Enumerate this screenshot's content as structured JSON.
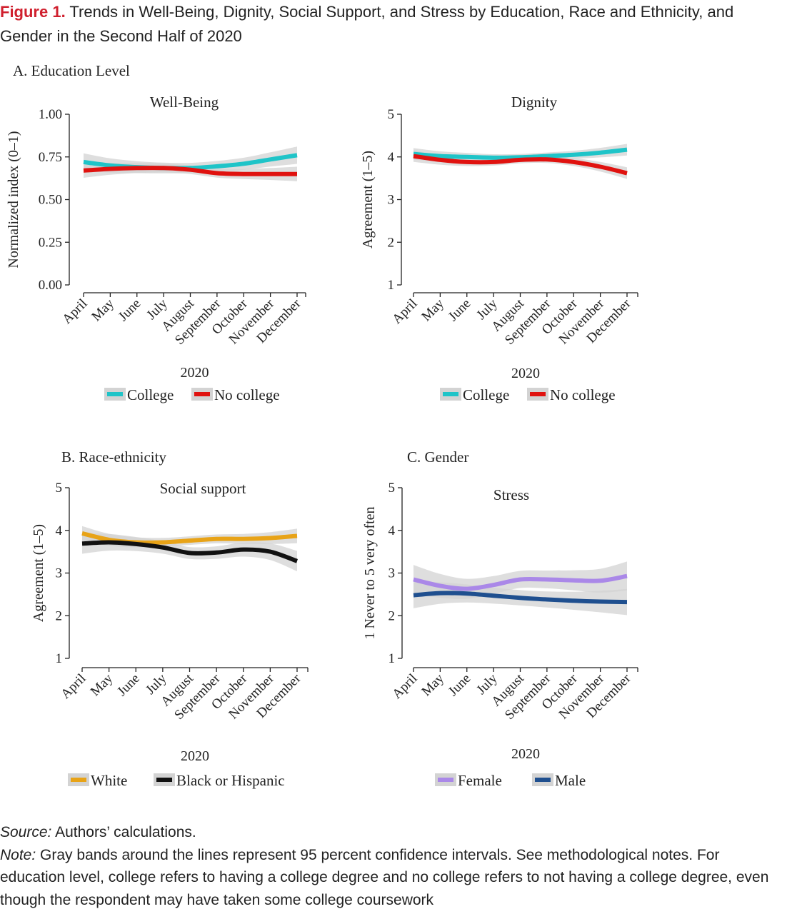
{
  "figure": {
    "label": "Figure 1.",
    "title": "Trends in Well-Being, Dignity, Social Support, and Stress by Education, Race and Ethnicity, and Gender in the Second Half of 2020"
  },
  "panels": {
    "A": "A. Education Level",
    "B": "B. Race-ethnicity",
    "C": "C. Gender"
  },
  "months": [
    "April",
    "May",
    "June",
    "July",
    "August",
    "September",
    "October",
    "November",
    "December"
  ],
  "year": "2020",
  "colors": {
    "teal": "#1fc4c8",
    "red": "#e0120f",
    "gold": "#e8a317",
    "black": "#111111",
    "purple": "#aa88e8",
    "navy": "#1f4f8f",
    "band": "#d3d3d3"
  },
  "chart_data": [
    {
      "type": "line",
      "title": "Well-Being",
      "ylabel": "Normalized index (0–1)",
      "xlabel": "2020",
      "ylim": [
        0,
        1
      ],
      "yticks": [
        "0.00",
        "0.25",
        "0.50",
        "0.75",
        "1.00"
      ],
      "x": [
        "April",
        "May",
        "June",
        "July",
        "August",
        "September",
        "October",
        "November",
        "December"
      ],
      "series": [
        {
          "name": "College",
          "color": "#1fc4c8",
          "values": [
            0.72,
            0.7,
            0.69,
            0.685,
            0.685,
            0.695,
            0.71,
            0.735,
            0.76
          ],
          "ci": 0.03
        },
        {
          "name": "No college",
          "color": "#e0120f",
          "values": [
            0.67,
            0.68,
            0.685,
            0.685,
            0.675,
            0.655,
            0.65,
            0.65,
            0.65
          ],
          "ci": 0.025
        }
      ]
    },
    {
      "type": "line",
      "title": "Dignity",
      "ylabel": "Agreement (1–5)",
      "xlabel": "2020",
      "ylim": [
        1,
        5
      ],
      "yticks": [
        "1",
        "2",
        "3",
        "4",
        "5"
      ],
      "x": [
        "April",
        "May",
        "June",
        "July",
        "August",
        "September",
        "October",
        "November",
        "December"
      ],
      "series": [
        {
          "name": "College",
          "color": "#1fc4c8",
          "values": [
            4.07,
            4.02,
            4.0,
            3.98,
            3.99,
            4.02,
            4.05,
            4.1,
            4.17
          ],
          "ci": 0.08
        },
        {
          "name": "No college",
          "color": "#e0120f",
          "values": [
            4.02,
            3.93,
            3.88,
            3.88,
            3.93,
            3.94,
            3.88,
            3.77,
            3.62
          ],
          "ci": 0.08
        }
      ]
    },
    {
      "type": "line",
      "title": "Social support",
      "ylabel": "Agreement (1–5)",
      "xlabel": "2020",
      "ylim": [
        1,
        5
      ],
      "yticks": [
        "1",
        "2",
        "3",
        "4",
        "5"
      ],
      "x": [
        "April",
        "May",
        "June",
        "July",
        "August",
        "September",
        "October",
        "November",
        "December"
      ],
      "series": [
        {
          "name": "White",
          "color": "#e8a317",
          "values": [
            3.93,
            3.78,
            3.72,
            3.72,
            3.76,
            3.8,
            3.8,
            3.82,
            3.87
          ],
          "ci": 0.1
        },
        {
          "name": "Black or Hispanic",
          "color": "#111111",
          "values": [
            3.69,
            3.72,
            3.68,
            3.6,
            3.47,
            3.48,
            3.55,
            3.5,
            3.28
          ],
          "ci": 0.14
        }
      ]
    },
    {
      "type": "line",
      "title": "Stress",
      "ylabel": "1 Never to 5 very often",
      "xlabel": "2020",
      "ylim": [
        1,
        5
      ],
      "yticks": [
        "1",
        "2",
        "3",
        "4",
        "5"
      ],
      "x": [
        "April",
        "May",
        "June",
        "July",
        "August",
        "September",
        "October",
        "November",
        "December"
      ],
      "series": [
        {
          "name": "Female",
          "color": "#aa88e8",
          "values": [
            2.85,
            2.7,
            2.63,
            2.72,
            2.85,
            2.85,
            2.83,
            2.82,
            2.93
          ],
          "ci": 0.2
        },
        {
          "name": "Male",
          "color": "#1f4f8f",
          "values": [
            2.48,
            2.53,
            2.52,
            2.47,
            2.42,
            2.38,
            2.35,
            2.33,
            2.32
          ],
          "ci": 0.18
        }
      ]
    }
  ],
  "legends": [
    [
      "College",
      "No college"
    ],
    [
      "College",
      "No college"
    ],
    [
      "White",
      "Black or Hispanic"
    ],
    [
      "Female",
      "Male"
    ]
  ],
  "source_label": "Source:",
  "source_text": "Authors’ calculations.",
  "note_label": "Note:",
  "note_text": "Gray bands around the lines represent 95 percent confidence intervals. See methodological notes. For education level, college refers to having a college degree and no college refers to not having a college degree, even though the respondent may have taken some college coursework"
}
